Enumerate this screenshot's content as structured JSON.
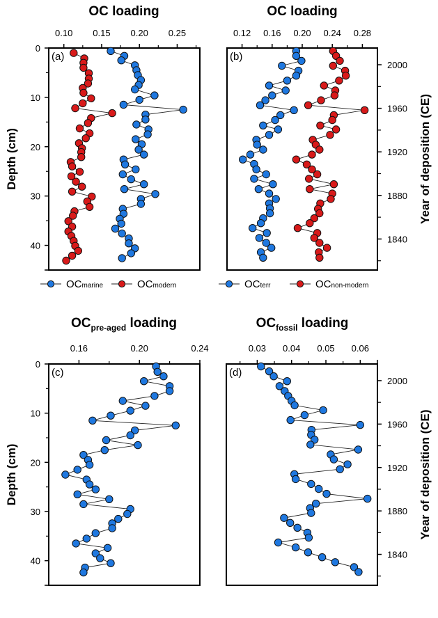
{
  "chart_data": [
    {
      "type": "scatter",
      "panel": "(a)",
      "title": "OC loading",
      "title_sub": "",
      "xlabel": "",
      "ylabel": "Depth (cm)",
      "y2label": "",
      "xlim": [
        0.08,
        0.28
      ],
      "ylim": [
        0,
        45
      ],
      "xticks": [
        0.1,
        0.15,
        0.2,
        0.25
      ],
      "xtick_labels": [
        "0.10",
        "0.15",
        "0.20",
        "0.25"
      ],
      "xminor": [
        0.125,
        0.175,
        0.225,
        0.275
      ],
      "yticks": [
        0,
        10,
        20,
        30,
        40
      ],
      "ytick_labels": [
        "0",
        "10",
        "20",
        "30",
        "40"
      ],
      "legend": "bottom",
      "series": [
        {
          "name": "OC",
          "name_sub": "marine",
          "color": "#1f78e0",
          "depth": [
            0.6,
            1.6,
            2.5,
            3.5,
            4.5,
            5.5,
            6.5,
            7.5,
            8.4,
            9.6,
            10.5,
            11.5,
            12.5,
            13.5,
            14.5,
            15.5,
            16.5,
            17.5,
            18.5,
            19.5,
            20.6,
            21.6,
            22.6,
            23.6,
            24.6,
            25.6,
            26.6,
            27.6,
            28.6,
            29.6,
            30.6,
            31.6,
            32.6,
            33.6,
            34.6,
            35.6,
            36.6,
            37.6,
            38.6,
            39.6,
            40.6,
            41.6,
            42.6
          ],
          "values": [
            0.162,
            0.18,
            0.176,
            0.194,
            0.196,
            0.198,
            0.202,
            0.199,
            0.194,
            0.22,
            0.2,
            0.179,
            0.258,
            0.208,
            0.208,
            0.196,
            0.212,
            0.211,
            0.195,
            0.203,
            0.199,
            0.206,
            0.179,
            0.181,
            0.195,
            0.178,
            0.189,
            0.206,
            0.18,
            0.221,
            0.202,
            0.202,
            0.178,
            0.179,
            0.174,
            0.176,
            0.168,
            0.177,
            0.186,
            0.186,
            0.194,
            0.189,
            0.177
          ]
        },
        {
          "name": "OC",
          "name_sub": "modern",
          "color": "#d81a1a",
          "depth": [
            1.0,
            2.1,
            3.0,
            4.0,
            5.1,
            6.2,
            7.2,
            8.1,
            9.1,
            10.2,
            11.2,
            12.2,
            13.2,
            14.2,
            15.2,
            16.3,
            17.3,
            18.3,
            19.3,
            20.3,
            21.1,
            22.1,
            23.1,
            24.0,
            25.1,
            26.0,
            27.1,
            28.1,
            29.1,
            30.1,
            31.1,
            32.2,
            33.1,
            34.0,
            35.1,
            36.2,
            37.2,
            38.1,
            39.1,
            40.1,
            41.1,
            42.1,
            43.1
          ],
          "values": [
            0.113,
            0.127,
            0.126,
            0.126,
            0.133,
            0.133,
            0.132,
            0.125,
            0.126,
            0.136,
            0.125,
            0.115,
            0.164,
            0.136,
            0.132,
            0.121,
            0.134,
            0.129,
            0.12,
            0.124,
            0.123,
            0.123,
            0.109,
            0.111,
            0.121,
            0.11,
            0.116,
            0.124,
            0.111,
            0.137,
            0.131,
            0.134,
            0.114,
            0.112,
            0.106,
            0.111,
            0.106,
            0.11,
            0.113,
            0.115,
            0.119,
            0.111,
            0.103
          ]
        }
      ]
    },
    {
      "type": "scatter",
      "panel": "(b)",
      "title": "OC loading",
      "title_sub": "",
      "xlabel": "",
      "ylabel": "",
      "y2label": "Year of deposition (CE)",
      "xlim": [
        0.1,
        0.3
      ],
      "ylim": [
        0,
        45
      ],
      "xticks": [
        0.12,
        0.16,
        0.2,
        0.24,
        0.28
      ],
      "xtick_labels": [
        "0.12",
        "0.16",
        "0.20",
        "0.24",
        "0.28"
      ],
      "xminor": [
        0.14,
        0.18,
        0.22,
        0.26
      ],
      "y2ticks": [
        2000,
        1960,
        1920,
        1880,
        1840
      ],
      "y2tick_labels": [
        "2000",
        "1960",
        "1920",
        "1880",
        "1840"
      ],
      "y2minor": [
        1980,
        1940,
        1900,
        1860,
        1820
      ],
      "legend": "bottom",
      "series": [
        {
          "name": "OC",
          "name_sub": "terr",
          "color": "#1f78e0",
          "depth": [
            0.6,
            1.6,
            2.6,
            3.6,
            4.6,
            5.6,
            6.6,
            7.6,
            8.6,
            9.6,
            10.6,
            11.6,
            12.6,
            13.6,
            14.6,
            15.7,
            16.5,
            17.6,
            18.6,
            19.6,
            20.6,
            21.6,
            22.6,
            23.5,
            24.6,
            25.6,
            26.5,
            27.6,
            28.6,
            29.5,
            30.6,
            31.5,
            32.5,
            33.5,
            34.5,
            35.5,
            36.5,
            37.5,
            38.5,
            39.5,
            40.5,
            41.4,
            42.5
          ],
          "values": [
            0.192,
            0.192,
            0.199,
            0.173,
            0.195,
            0.192,
            0.18,
            0.156,
            0.178,
            0.16,
            0.151,
            0.144,
            0.189,
            0.171,
            0.164,
            0.148,
            0.168,
            0.156,
            0.139,
            0.14,
            0.148,
            0.131,
            0.121,
            0.136,
            0.139,
            0.152,
            0.136,
            0.161,
            0.142,
            0.156,
            0.165,
            0.156,
            0.157,
            0.157,
            0.148,
            0.145,
            0.134,
            0.153,
            0.143,
            0.152,
            0.159,
            0.145,
            0.148
          ]
        },
        {
          "name": "OC",
          "name_sub": "non-modern",
          "color": "#d81a1a",
          "depth": [
            0.6,
            1.6,
            2.6,
            3.6,
            4.6,
            5.6,
            6.6,
            7.6,
            8.6,
            9.6,
            10.6,
            11.6,
            12.6,
            13.6,
            14.6,
            15.7,
            16.5,
            17.6,
            18.6,
            19.6,
            20.6,
            21.6,
            22.6,
            23.6,
            24.6,
            25.6,
            26.5,
            27.6,
            28.6,
            29.5,
            30.6,
            31.5,
            32.6,
            33.5,
            34.5,
            35.5,
            36.5,
            37.5,
            38.5,
            39.5,
            40.5,
            41.4,
            42.5
          ],
          "values": [
            0.241,
            0.245,
            0.25,
            0.241,
            0.257,
            0.258,
            0.249,
            0.229,
            0.244,
            0.243,
            0.225,
            0.208,
            0.283,
            0.242,
            0.24,
            0.224,
            0.245,
            0.237,
            0.214,
            0.218,
            0.223,
            0.213,
            0.192,
            0.206,
            0.213,
            0.22,
            0.209,
            0.242,
            0.21,
            0.24,
            0.238,
            0.224,
            0.221,
            0.223,
            0.216,
            0.21,
            0.194,
            0.22,
            0.216,
            0.223,
            0.233,
            0.222,
            0.223
          ]
        }
      ]
    },
    {
      "type": "scatter",
      "panel": "(c)",
      "title": "OC",
      "title_sub": "pre-aged",
      "title_tail": " loading",
      "xlabel": "",
      "ylabel": "Depth (cm)",
      "y2label": "",
      "xlim": [
        0.14,
        0.24
      ],
      "ylim": [
        0,
        45
      ],
      "xticks": [
        0.16,
        0.2,
        0.24
      ],
      "xtick_labels": [
        "0.16",
        "0.20",
        "0.24"
      ],
      "xminor": [
        0.18,
        0.22
      ],
      "yticks": [
        0,
        10,
        20,
        30,
        40
      ],
      "ytick_labels": [
        "0",
        "10",
        "20",
        "30",
        "40"
      ],
      "series": [
        {
          "name": "OC",
          "name_sub": "pre-aged",
          "color": "#1f78e0",
          "depth": [
            0.5,
            1.6,
            2.5,
            3.5,
            4.5,
            5.5,
            6.5,
            7.5,
            8.5,
            9.5,
            10.5,
            11.5,
            12.5,
            13.5,
            14.5,
            15.5,
            16.5,
            17.5,
            18.5,
            19.5,
            20.5,
            21.5,
            22.5,
            23.5,
            24.5,
            25.5,
            26.5,
            27.5,
            28.5,
            29.5,
            30.5,
            31.5,
            32.4,
            33.4,
            34.4,
            35.5,
            36.5,
            37.4,
            38.5,
            39.5,
            40.5,
            41.4,
            42.4
          ],
          "values": [
            0.211,
            0.212,
            0.216,
            0.203,
            0.22,
            0.22,
            0.21,
            0.189,
            0.204,
            0.194,
            0.181,
            0.169,
            0.224,
            0.197,
            0.194,
            0.178,
            0.199,
            0.177,
            0.163,
            0.166,
            0.167,
            0.159,
            0.151,
            0.165,
            0.167,
            0.171,
            0.159,
            0.18,
            0.163,
            0.194,
            0.192,
            0.186,
            0.182,
            0.182,
            0.171,
            0.165,
            0.158,
            0.179,
            0.171,
            0.174,
            0.181,
            0.164,
            0.163
          ]
        }
      ]
    },
    {
      "type": "scatter",
      "panel": "(d)",
      "title": "OC",
      "title_sub": "fossil",
      "title_tail": " loading",
      "xlabel": "",
      "ylabel": "",
      "y2label": "Year of deposition (CE)",
      "xlim": [
        0.021,
        0.065
      ],
      "ylim": [
        0,
        45
      ],
      "xticks": [
        0.03,
        0.04,
        0.05,
        0.06
      ],
      "xtick_labels": [
        "0.03",
        "0.04",
        "0.05",
        "0.06"
      ],
      "xminor": [
        0.025,
        0.035,
        0.045,
        0.055,
        0.065
      ],
      "y2ticks": [
        2000,
        1960,
        1920,
        1880,
        1840
      ],
      "y2tick_labels": [
        "2000",
        "1960",
        "1920",
        "1880",
        "1840"
      ],
      "y2minor": [
        1980,
        1940,
        1900,
        1860,
        1820
      ],
      "series": [
        {
          "name": "OC",
          "name_sub": "fossil",
          "color": "#1f78e0",
          "depth": [
            0.5,
            1.5,
            2.5,
            3.5,
            4.5,
            5.5,
            6.5,
            7.5,
            8.4,
            9.4,
            10.4,
            11.4,
            12.4,
            13.4,
            14.4,
            15.4,
            16.4,
            17.4,
            18.4,
            19.4,
            20.4,
            21.4,
            22.4,
            23.4,
            24.4,
            25.4,
            26.4,
            27.4,
            28.4,
            29.3,
            30.3,
            31.3,
            32.3,
            33.3,
            34.3,
            35.3,
            36.3,
            37.3,
            38.3,
            39.3,
            40.3,
            41.3,
            42.3
          ],
          "values": [
            0.0311,
            0.0335,
            0.0348,
            0.0387,
            0.0365,
            0.038,
            0.039,
            0.04,
            0.0409,
            0.0492,
            0.0438,
            0.0397,
            0.06,
            0.0458,
            0.0457,
            0.0467,
            0.0455,
            0.0594,
            0.0514,
            0.0523,
            0.0563,
            0.0541,
            0.0408,
            0.0412,
            0.0457,
            0.0479,
            0.0502,
            0.0621,
            0.0471,
            0.0454,
            0.0457,
            0.0378,
            0.0396,
            0.0417,
            0.0446,
            0.045,
            0.0361,
            0.0412,
            0.0448,
            0.0489,
            0.0527,
            0.0582,
            0.0595
          ]
        }
      ]
    }
  ],
  "age_model": {
    "year_at_depth_ref": 2000,
    "depth_ref_cm": 3.39,
    "cm_per_40yr": 8.83
  }
}
